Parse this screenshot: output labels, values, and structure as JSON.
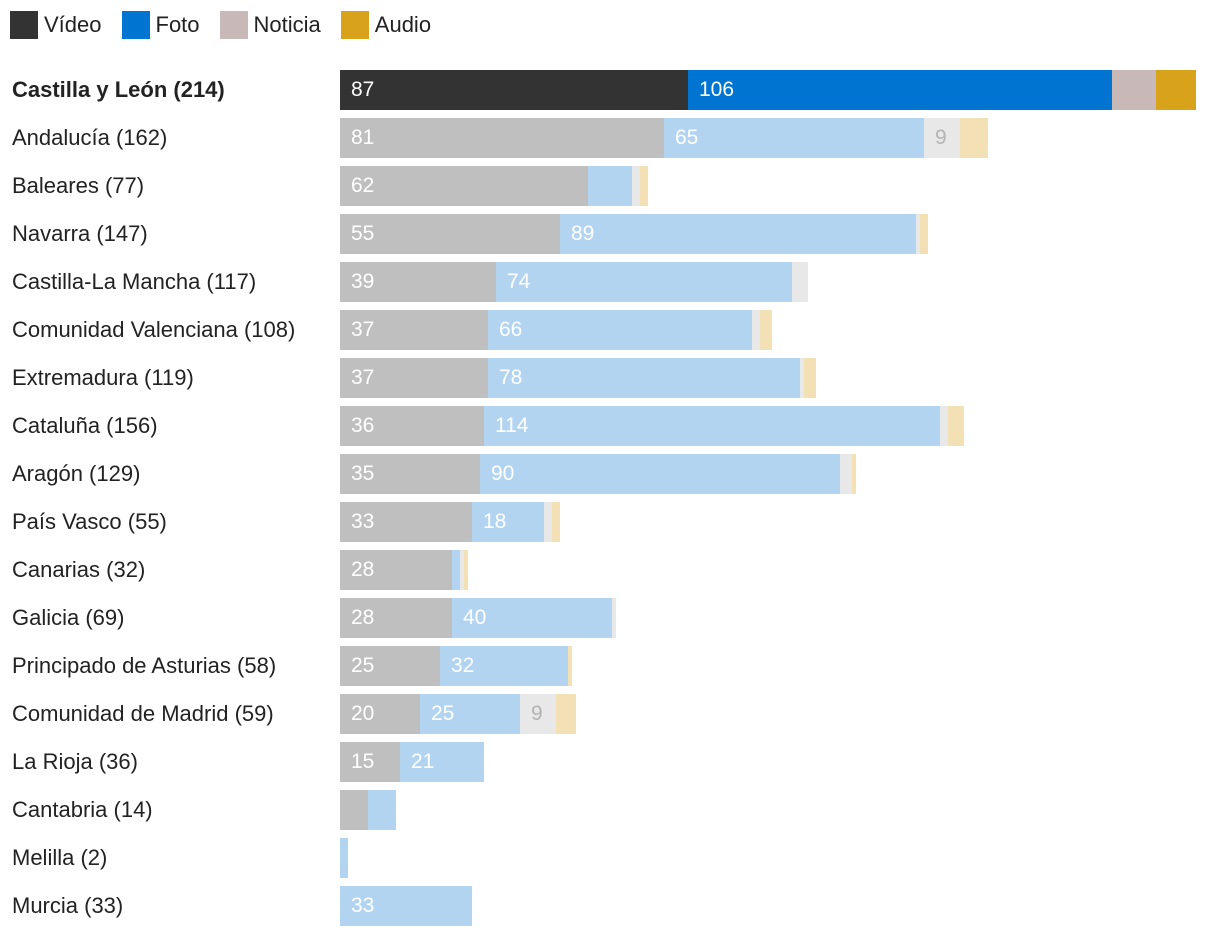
{
  "chart_data": {
    "type": "bar",
    "orientation": "horizontal",
    "stacked": true,
    "legend_position": "top-left",
    "series": [
      {
        "key": "video",
        "name": "Vídeo",
        "color": "#333333",
        "faded_color": "#bfbfbf",
        "label_color": "#ffffff",
        "faded_label_color": "#ffffff"
      },
      {
        "key": "foto",
        "name": "Foto",
        "color": "#0074d1",
        "faded_color": "#b3d4f0",
        "label_color": "#ffffff",
        "faded_label_color": "#ffffff"
      },
      {
        "key": "noticia",
        "name": "Noticia",
        "color": "#c8b8b8",
        "faded_color": "#e8e8e8",
        "label_color": "#ffffff",
        "faded_label_color": "#b4b4b4"
      },
      {
        "key": "audio",
        "name": "Audio",
        "color": "#d9a21b",
        "faded_color": "#f3e0b5",
        "label_color": "#ffffff",
        "faded_label_color": "#ffffff"
      }
    ],
    "rows": [
      {
        "label": "Castilla y León (214)",
        "highlight": true,
        "values": [
          87,
          106,
          11,
          10
        ],
        "labels": [
          "87",
          "106",
          "",
          ""
        ]
      },
      {
        "label": "Andalucía (162)",
        "values": [
          81,
          65,
          9,
          7
        ],
        "labels": [
          "81",
          "65",
          "9",
          ""
        ]
      },
      {
        "label": "Baleares (77)",
        "values": [
          62,
          11,
          2,
          2
        ],
        "labels": [
          "62",
          "",
          "",
          ""
        ]
      },
      {
        "label": "Navarra (147)",
        "values": [
          55,
          89,
          1,
          2
        ],
        "labels": [
          "55",
          "89",
          "",
          ""
        ]
      },
      {
        "label": "Castilla-La Mancha (117)",
        "values": [
          39,
          74,
          4,
          0
        ],
        "labels": [
          "39",
          "74",
          "",
          ""
        ]
      },
      {
        "label": "Comunidad Valenciana (108)",
        "values": [
          37,
          66,
          2,
          3
        ],
        "labels": [
          "37",
          "66",
          "",
          ""
        ]
      },
      {
        "label": "Extremadura (119)",
        "values": [
          37,
          78,
          1,
          3
        ],
        "labels": [
          "37",
          "78",
          "",
          ""
        ]
      },
      {
        "label": "Cataluña (156)",
        "values": [
          36,
          114,
          2,
          4
        ],
        "labels": [
          "36",
          "114",
          "",
          ""
        ]
      },
      {
        "label": "Aragón (129)",
        "values": [
          35,
          90,
          3,
          1
        ],
        "labels": [
          "35",
          "90",
          "",
          ""
        ]
      },
      {
        "label": "País Vasco (55)",
        "values": [
          33,
          18,
          2,
          2
        ],
        "labels": [
          "33",
          "18",
          "",
          ""
        ]
      },
      {
        "label": "Canarias (32)",
        "values": [
          28,
          2,
          1,
          1
        ],
        "labels": [
          "28",
          "",
          "",
          ""
        ]
      },
      {
        "label": "Galicia (69)",
        "values": [
          28,
          40,
          1,
          0
        ],
        "labels": [
          "28",
          "40",
          "",
          ""
        ]
      },
      {
        "label": "Principado de Asturias (58)",
        "values": [
          25,
          32,
          0,
          1
        ],
        "labels": [
          "25",
          "32",
          "",
          ""
        ]
      },
      {
        "label": "Comunidad de Madrid (59)",
        "values": [
          20,
          25,
          9,
          5
        ],
        "labels": [
          "20",
          "25",
          "9",
          ""
        ]
      },
      {
        "label": "La Rioja (36)",
        "values": [
          15,
          21,
          0,
          0
        ],
        "labels": [
          "15",
          "21",
          "",
          ""
        ]
      },
      {
        "label": "Cantabria (14)",
        "values": [
          7,
          7,
          0,
          0
        ],
        "labels": [
          "",
          "",
          "",
          ""
        ]
      },
      {
        "label": "Melilla (2)",
        "values": [
          0,
          2,
          0,
          0
        ],
        "labels": [
          "",
          "",
          "",
          ""
        ]
      },
      {
        "label": "Murcia (33)",
        "values": [
          0,
          33,
          0,
          0
        ],
        "labels": [
          "",
          "33",
          "",
          ""
        ]
      }
    ]
  }
}
